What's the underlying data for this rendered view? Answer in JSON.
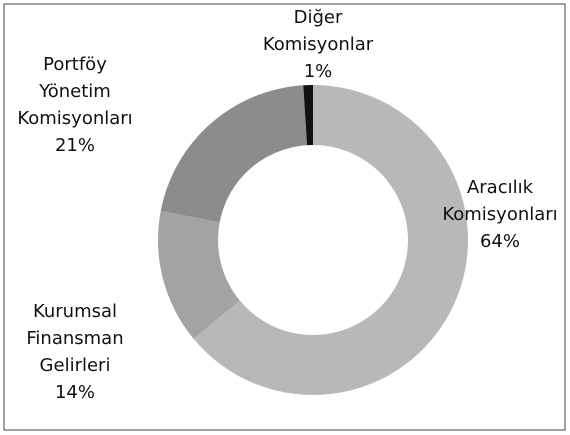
{
  "chart_data": {
    "type": "donut",
    "categories": [
      "Aracılık Komisyonları",
      "Kurumsal Finansman Gelirleri",
      "Portföy Yönetim Komisyonları",
      "Diğer Komisyonlar"
    ],
    "values": [
      64,
      14,
      21,
      1
    ],
    "value_labels": [
      "64%",
      "14%",
      "21%",
      "1%"
    ],
    "colors": [
      "#b8b8b8",
      "#a3a3a3",
      "#8c8c8c",
      "#111111"
    ]
  }
}
